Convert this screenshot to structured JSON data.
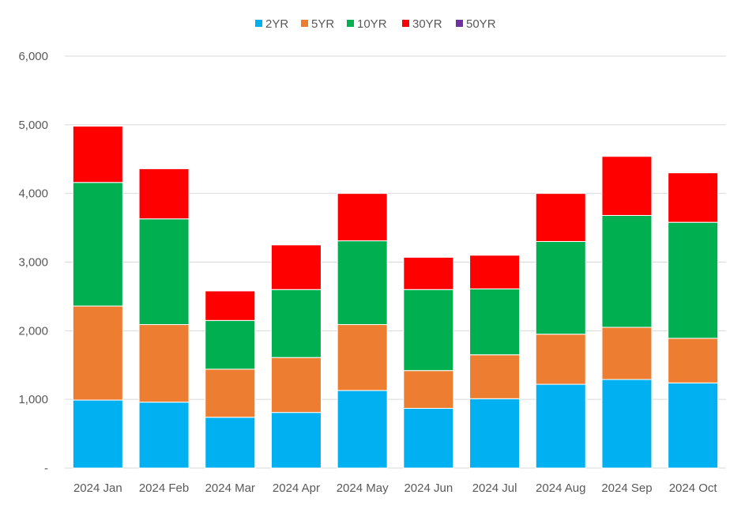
{
  "chart_data": {
    "type": "bar",
    "stacked": true,
    "title": "",
    "xlabel": "",
    "ylabel": "",
    "categories": [
      "2024 Jan",
      "2024 Feb",
      "2024 Mar",
      "2024 Apr",
      "2024 May",
      "2024 Jun",
      "2024 Jul",
      "2024 Aug",
      "2024 Sep",
      "2024 Oct"
    ],
    "series": [
      {
        "name": "2YR",
        "color": "#00B0F0",
        "values": [
          990,
          960,
          740,
          810,
          1130,
          870,
          1010,
          1220,
          1290,
          1240
        ]
      },
      {
        "name": "5YR",
        "color": "#ED7D31",
        "values": [
          1370,
          1130,
          700,
          800,
          960,
          550,
          640,
          730,
          760,
          650
        ]
      },
      {
        "name": "10YR",
        "color": "#00B050",
        "values": [
          1800,
          1540,
          710,
          990,
          1220,
          1180,
          960,
          1350,
          1630,
          1690
        ]
      },
      {
        "name": "30YR",
        "color": "#FF0000",
        "values": [
          820,
          730,
          430,
          650,
          690,
          470,
          490,
          700,
          860,
          720
        ]
      },
      {
        "name": "50YR",
        "color": "#7030A0",
        "values": [
          0,
          0,
          0,
          0,
          0,
          0,
          0,
          0,
          0,
          0
        ]
      }
    ],
    "ylim": [
      0,
      6000
    ],
    "yticks": [
      0,
      1000,
      2000,
      3000,
      4000,
      5000,
      6000
    ],
    "ytick_labels": [
      "-",
      "1,000",
      "2,000",
      "3,000",
      "4,000",
      "5,000",
      "6,000"
    ],
    "grid": true,
    "legend_position": "top-center"
  }
}
